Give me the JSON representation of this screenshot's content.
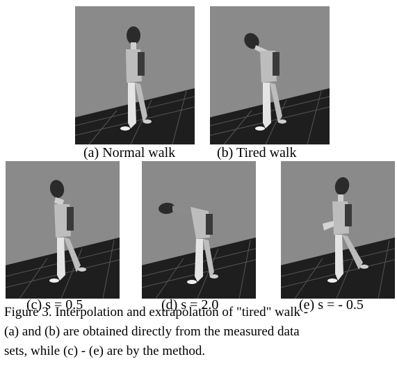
{
  "figure": {
    "panels": [
      {
        "id": "a",
        "label": "(a) Normal walk",
        "pose": "normal"
      },
      {
        "id": "b",
        "label": "(b) Tired walk",
        "pose": "tired"
      },
      {
        "id": "c",
        "label": "(c) s = 0.5",
        "pose": "half"
      },
      {
        "id": "d",
        "label": "(d) s = 2.0",
        "pose": "extreme"
      },
      {
        "id": "e",
        "label": "(e) s = - 0.5",
        "pose": "upright"
      }
    ],
    "caption_lines": [
      "Figure 3.  Interpolation and extrapolation of \"tired\" walk -",
      "(a) and (b) are obtained directly  from the measured data",
      "sets, while (c)  - (e) are by the method."
    ]
  },
  "colors": {
    "background_wall": "#8a8a8a",
    "floor": "#1e1e1e",
    "grid": "#5a5a5a",
    "figure_light": "#d8d8d8",
    "figure_dark": "#3a3a3a"
  }
}
